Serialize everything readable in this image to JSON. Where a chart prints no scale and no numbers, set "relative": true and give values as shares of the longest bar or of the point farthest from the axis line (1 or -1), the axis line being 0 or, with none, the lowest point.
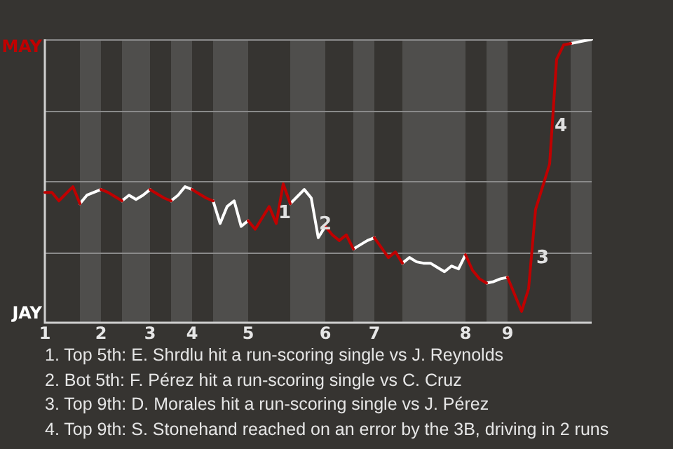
{
  "chart_data": {
    "type": "line",
    "relative": true,
    "categories": [
      "1",
      null,
      null,
      null,
      null,
      null,
      null,
      null,
      "2",
      null,
      null,
      null,
      null,
      null,
      null,
      "3",
      null,
      null,
      null,
      null,
      null,
      "4",
      null,
      null,
      null,
      null,
      null,
      null,
      null,
      "5",
      null,
      null,
      null,
      null,
      null,
      null,
      null,
      null,
      null,
      null,
      "6",
      null,
      null,
      null,
      null,
      null,
      null,
      "7",
      null,
      null,
      null,
      null,
      null,
      null,
      null,
      null,
      null,
      null,
      null,
      null,
      "8",
      null,
      null,
      null,
      null,
      null,
      "9",
      null,
      null,
      null,
      null,
      null,
      null,
      null,
      null,
      null,
      null,
      null,
      null
    ],
    "series": [
      {
        "color": "#c00000",
        "values": [
          0.46,
          0.46,
          0.43,
          0.455,
          0.48,
          0.42,
          null,
          null,
          0.47,
          0.46,
          0.445,
          0.43,
          null,
          null,
          null,
          0.47,
          0.455,
          0.44,
          0.43,
          null,
          null,
          0.47,
          0.455,
          0.44,
          0.43,
          null,
          null,
          null,
          null,
          0.36,
          0.33,
          0.37,
          0.41,
          0.35,
          0.49,
          0.42,
          null,
          null,
          null,
          null,
          0.34,
          0.31,
          0.29,
          0.31,
          0.26,
          null,
          null,
          0.3,
          0.265,
          0.23,
          0.25,
          0.21,
          null,
          null,
          null,
          null,
          null,
          null,
          null,
          null,
          0.24,
          0.185,
          0.155,
          0.14,
          null,
          null,
          0.16,
          0.1,
          0.04,
          0.12,
          0.4,
          0.48,
          0.56,
          0.93,
          0.98,
          0.985,
          null,
          null,
          null
        ]
      },
      {
        "color": "#ffffff",
        "values": [
          null,
          null,
          null,
          null,
          null,
          0.42,
          0.45,
          0.46,
          0.47,
          null,
          null,
          0.43,
          0.45,
          0.435,
          0.45,
          0.47,
          null,
          null,
          0.43,
          0.45,
          0.48,
          0.47,
          null,
          null,
          0.43,
          0.35,
          0.41,
          0.43,
          0.34,
          0.36,
          null,
          null,
          null,
          null,
          null,
          0.42,
          0.445,
          0.47,
          0.44,
          0.3,
          0.34,
          null,
          null,
          null,
          0.26,
          0.275,
          0.29,
          0.3,
          null,
          null,
          null,
          0.21,
          0.23,
          0.215,
          0.21,
          0.21,
          0.195,
          0.18,
          0.2,
          0.19,
          0.24,
          null,
          null,
          0.14,
          0.145,
          0.155,
          0.16,
          null,
          null,
          null,
          null,
          null,
          null,
          null,
          null,
          0.985,
          0.99,
          0.995,
          1.0
        ]
      }
    ],
    "legend": false,
    "marker": "none",
    "line_style": "solid",
    "ref_lines": [
      {
        "axis": "y",
        "value": 0.25,
        "color": "#8a8a8a"
      },
      {
        "axis": "y",
        "value": 0.5,
        "color": "#8a8a8a"
      },
      {
        "axis": "y",
        "value": 0.75,
        "color": "#8a8a8a"
      },
      {
        "axis": "y",
        "value": 1,
        "color": "#8a8a8a"
      }
    ],
    "annotations": [
      "MAY",
      "JAY",
      "1",
      "2",
      "3",
      "4",
      "1. Top 5th: E. Shrdlu hit a run-scoring single vs J. Reynolds",
      "2. Bot 5th: F. Pérez hit a run-scoring single vs C. Cruz",
      "3. Top 9th: D. Morales hit a run-scoring single vs J. Pérez",
      "4. Top 9th: S. Stonehand reached on an error by the 3B, driving in 2 runs"
    ]
  }
}
